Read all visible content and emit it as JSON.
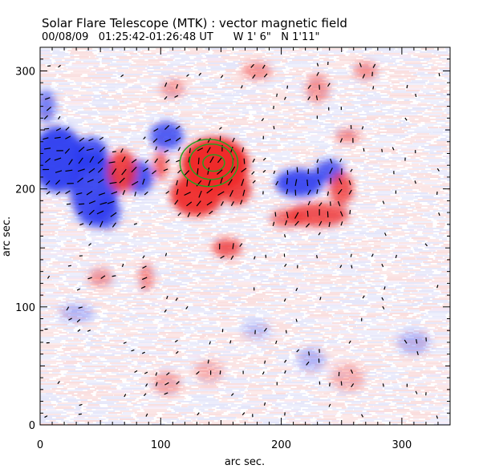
{
  "chart_data": {
    "type": "heatmap",
    "title": "Solar Flare Telescope (MTK) : vector magnetic field",
    "subtitle": "00/08/09   01:25:42-01:26:48 UT      W 1' 6\"   N 1'11\"",
    "xlabel": "arc sec.",
    "ylabel": "arc sec.",
    "xlim": [
      0,
      340
    ],
    "ylim": [
      0,
      320
    ],
    "x_ticks": [
      0,
      100,
      200,
      300
    ],
    "y_ticks": [
      0,
      100,
      200,
      300
    ],
    "grid": false,
    "colors": {
      "positive_polarity": "#ef2a2a",
      "negative_polarity": "#2d3cf0",
      "transverse_vectors": "#000000",
      "contours": "#1fa31f"
    },
    "regions": [
      {
        "polarity": "negative",
        "x": 15,
        "y": 225,
        "rx": 22,
        "ry": 28,
        "strength": 0.95
      },
      {
        "polarity": "negative",
        "x": 45,
        "y": 200,
        "rx": 20,
        "ry": 32,
        "strength": 0.9
      },
      {
        "polarity": "negative",
        "x": 42,
        "y": 230,
        "rx": 14,
        "ry": 14,
        "strength": 0.85
      },
      {
        "polarity": "negative",
        "x": 55,
        "y": 180,
        "rx": 12,
        "ry": 14,
        "strength": 0.75
      },
      {
        "polarity": "negative",
        "x": 82,
        "y": 210,
        "rx": 12,
        "ry": 14,
        "strength": 0.85
      },
      {
        "polarity": "negative",
        "x": 105,
        "y": 245,
        "rx": 14,
        "ry": 12,
        "strength": 0.8
      },
      {
        "polarity": "negative",
        "x": 215,
        "y": 205,
        "rx": 20,
        "ry": 12,
        "strength": 0.9
      },
      {
        "polarity": "negative",
        "x": 240,
        "y": 215,
        "rx": 12,
        "ry": 10,
        "strength": 0.8
      },
      {
        "polarity": "negative",
        "x": 5,
        "y": 270,
        "rx": 8,
        "ry": 14,
        "strength": 0.6
      },
      {
        "polarity": "positive",
        "x": 145,
        "y": 220,
        "rx": 28,
        "ry": 24,
        "strength": 1.0
      },
      {
        "polarity": "positive",
        "x": 130,
        "y": 195,
        "rx": 22,
        "ry": 18,
        "strength": 0.95
      },
      {
        "polarity": "positive",
        "x": 163,
        "y": 200,
        "rx": 12,
        "ry": 14,
        "strength": 0.85
      },
      {
        "polarity": "positive",
        "x": 68,
        "y": 215,
        "rx": 12,
        "ry": 18,
        "strength": 0.85
      },
      {
        "polarity": "positive",
        "x": 100,
        "y": 220,
        "rx": 6,
        "ry": 12,
        "strength": 0.7
      },
      {
        "polarity": "positive",
        "x": 155,
        "y": 150,
        "rx": 12,
        "ry": 8,
        "strength": 0.75
      },
      {
        "polarity": "positive",
        "x": 230,
        "y": 178,
        "rx": 26,
        "ry": 10,
        "strength": 0.8
      },
      {
        "polarity": "positive",
        "x": 250,
        "y": 200,
        "rx": 10,
        "ry": 14,
        "strength": 0.75
      },
      {
        "polarity": "positive",
        "x": 205,
        "y": 175,
        "rx": 14,
        "ry": 8,
        "strength": 0.6
      },
      {
        "polarity": "positive",
        "x": 180,
        "y": 300,
        "rx": 12,
        "ry": 8,
        "strength": 0.45
      },
      {
        "polarity": "positive",
        "x": 230,
        "y": 285,
        "rx": 10,
        "ry": 12,
        "strength": 0.45
      },
      {
        "polarity": "positive",
        "x": 270,
        "y": 300,
        "rx": 10,
        "ry": 8,
        "strength": 0.45
      },
      {
        "polarity": "positive",
        "x": 255,
        "y": 245,
        "rx": 10,
        "ry": 6,
        "strength": 0.5
      },
      {
        "polarity": "positive",
        "x": 50,
        "y": 125,
        "rx": 10,
        "ry": 8,
        "strength": 0.45
      },
      {
        "polarity": "positive",
        "x": 88,
        "y": 125,
        "rx": 6,
        "ry": 12,
        "strength": 0.5
      },
      {
        "polarity": "positive",
        "x": 110,
        "y": 285,
        "rx": 10,
        "ry": 8,
        "strength": 0.4
      },
      {
        "polarity": "positive",
        "x": 105,
        "y": 35,
        "rx": 12,
        "ry": 10,
        "strength": 0.35
      },
      {
        "polarity": "positive",
        "x": 255,
        "y": 40,
        "rx": 14,
        "ry": 12,
        "strength": 0.3
      },
      {
        "polarity": "positive",
        "x": 140,
        "y": 45,
        "rx": 12,
        "ry": 10,
        "strength": 0.3
      },
      {
        "polarity": "negative",
        "x": 310,
        "y": 70,
        "rx": 14,
        "ry": 10,
        "strength": 0.3
      },
      {
        "polarity": "negative",
        "x": 225,
        "y": 55,
        "rx": 12,
        "ry": 10,
        "strength": 0.3
      },
      {
        "polarity": "negative",
        "x": 30,
        "y": 95,
        "rx": 14,
        "ry": 8,
        "strength": 0.3
      },
      {
        "polarity": "negative",
        "x": 180,
        "y": 80,
        "rx": 12,
        "ry": 8,
        "strength": 0.25
      }
    ],
    "contours": [
      {
        "x": 140,
        "y": 222,
        "rx": 24,
        "ry": 20
      },
      {
        "x": 142,
        "y": 223,
        "rx": 18,
        "ry": 15
      },
      {
        "x": 144,
        "y": 222,
        "rx": 9,
        "ry": 7
      }
    ]
  }
}
